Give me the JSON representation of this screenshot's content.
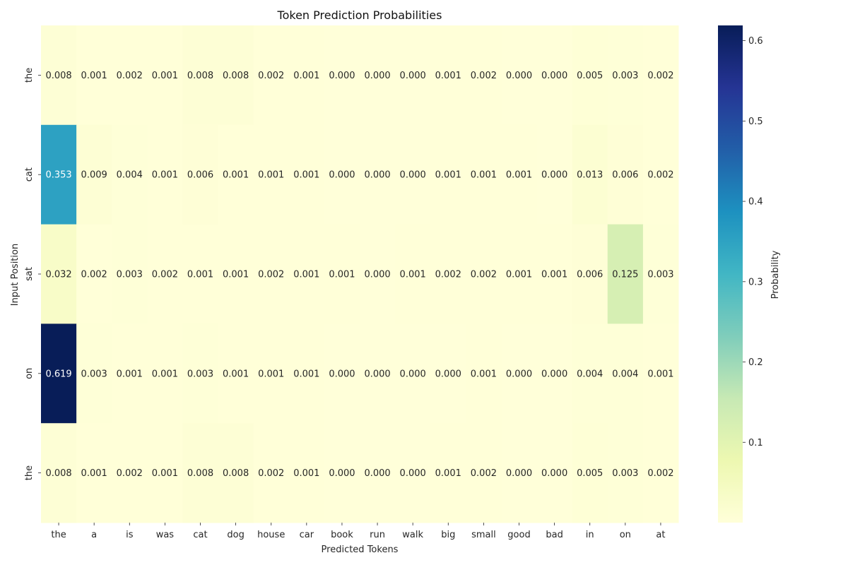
{
  "chart_data": {
    "type": "heatmap",
    "title": "Token Prediction Probabilities",
    "xlabel": "Predicted Tokens",
    "ylabel": "Input Position",
    "x_categories": [
      "the",
      "a",
      "is",
      "was",
      "cat",
      "dog",
      "house",
      "car",
      "book",
      "run",
      "walk",
      "big",
      "small",
      "good",
      "bad",
      "in",
      "on",
      "at"
    ],
    "y_categories": [
      "the",
      "cat",
      "sat",
      "on",
      "the"
    ],
    "values": [
      [
        0.008,
        0.001,
        0.002,
        0.001,
        0.008,
        0.008,
        0.002,
        0.001,
        0.0,
        0.0,
        0.0,
        0.001,
        0.002,
        0.0,
        0.0,
        0.005,
        0.003,
        0.002
      ],
      [
        0.353,
        0.009,
        0.004,
        0.001,
        0.006,
        0.001,
        0.001,
        0.001,
        0.0,
        0.0,
        0.0,
        0.001,
        0.001,
        0.001,
        0.0,
        0.013,
        0.006,
        0.002
      ],
      [
        0.032,
        0.002,
        0.003,
        0.002,
        0.001,
        0.001,
        0.002,
        0.001,
        0.001,
        0.0,
        0.001,
        0.002,
        0.002,
        0.001,
        0.001,
        0.006,
        0.125,
        0.003
      ],
      [
        0.619,
        0.003,
        0.001,
        0.001,
        0.003,
        0.001,
        0.001,
        0.001,
        0.0,
        0.0,
        0.0,
        0.0,
        0.001,
        0.0,
        0.0,
        0.004,
        0.004,
        0.001
      ],
      [
        0.008,
        0.001,
        0.002,
        0.001,
        0.008,
        0.008,
        0.002,
        0.001,
        0.0,
        0.0,
        0.0,
        0.001,
        0.002,
        0.0,
        0.0,
        0.005,
        0.003,
        0.002
      ]
    ],
    "value_format_decimals": 3,
    "colormap": "YlGnBu",
    "colorbar": {
      "label": "Probability",
      "range": [
        0.0,
        0.619
      ],
      "ticks": [
        0.1,
        0.2,
        0.3,
        0.4,
        0.5,
        0.6
      ],
      "tick_labels": [
        "0.1",
        "0.2",
        "0.3",
        "0.4",
        "0.5",
        "0.6"
      ]
    },
    "annotation_text_colors": {
      "light": "#ffffff",
      "dark": "#262626"
    },
    "grid": false
  }
}
